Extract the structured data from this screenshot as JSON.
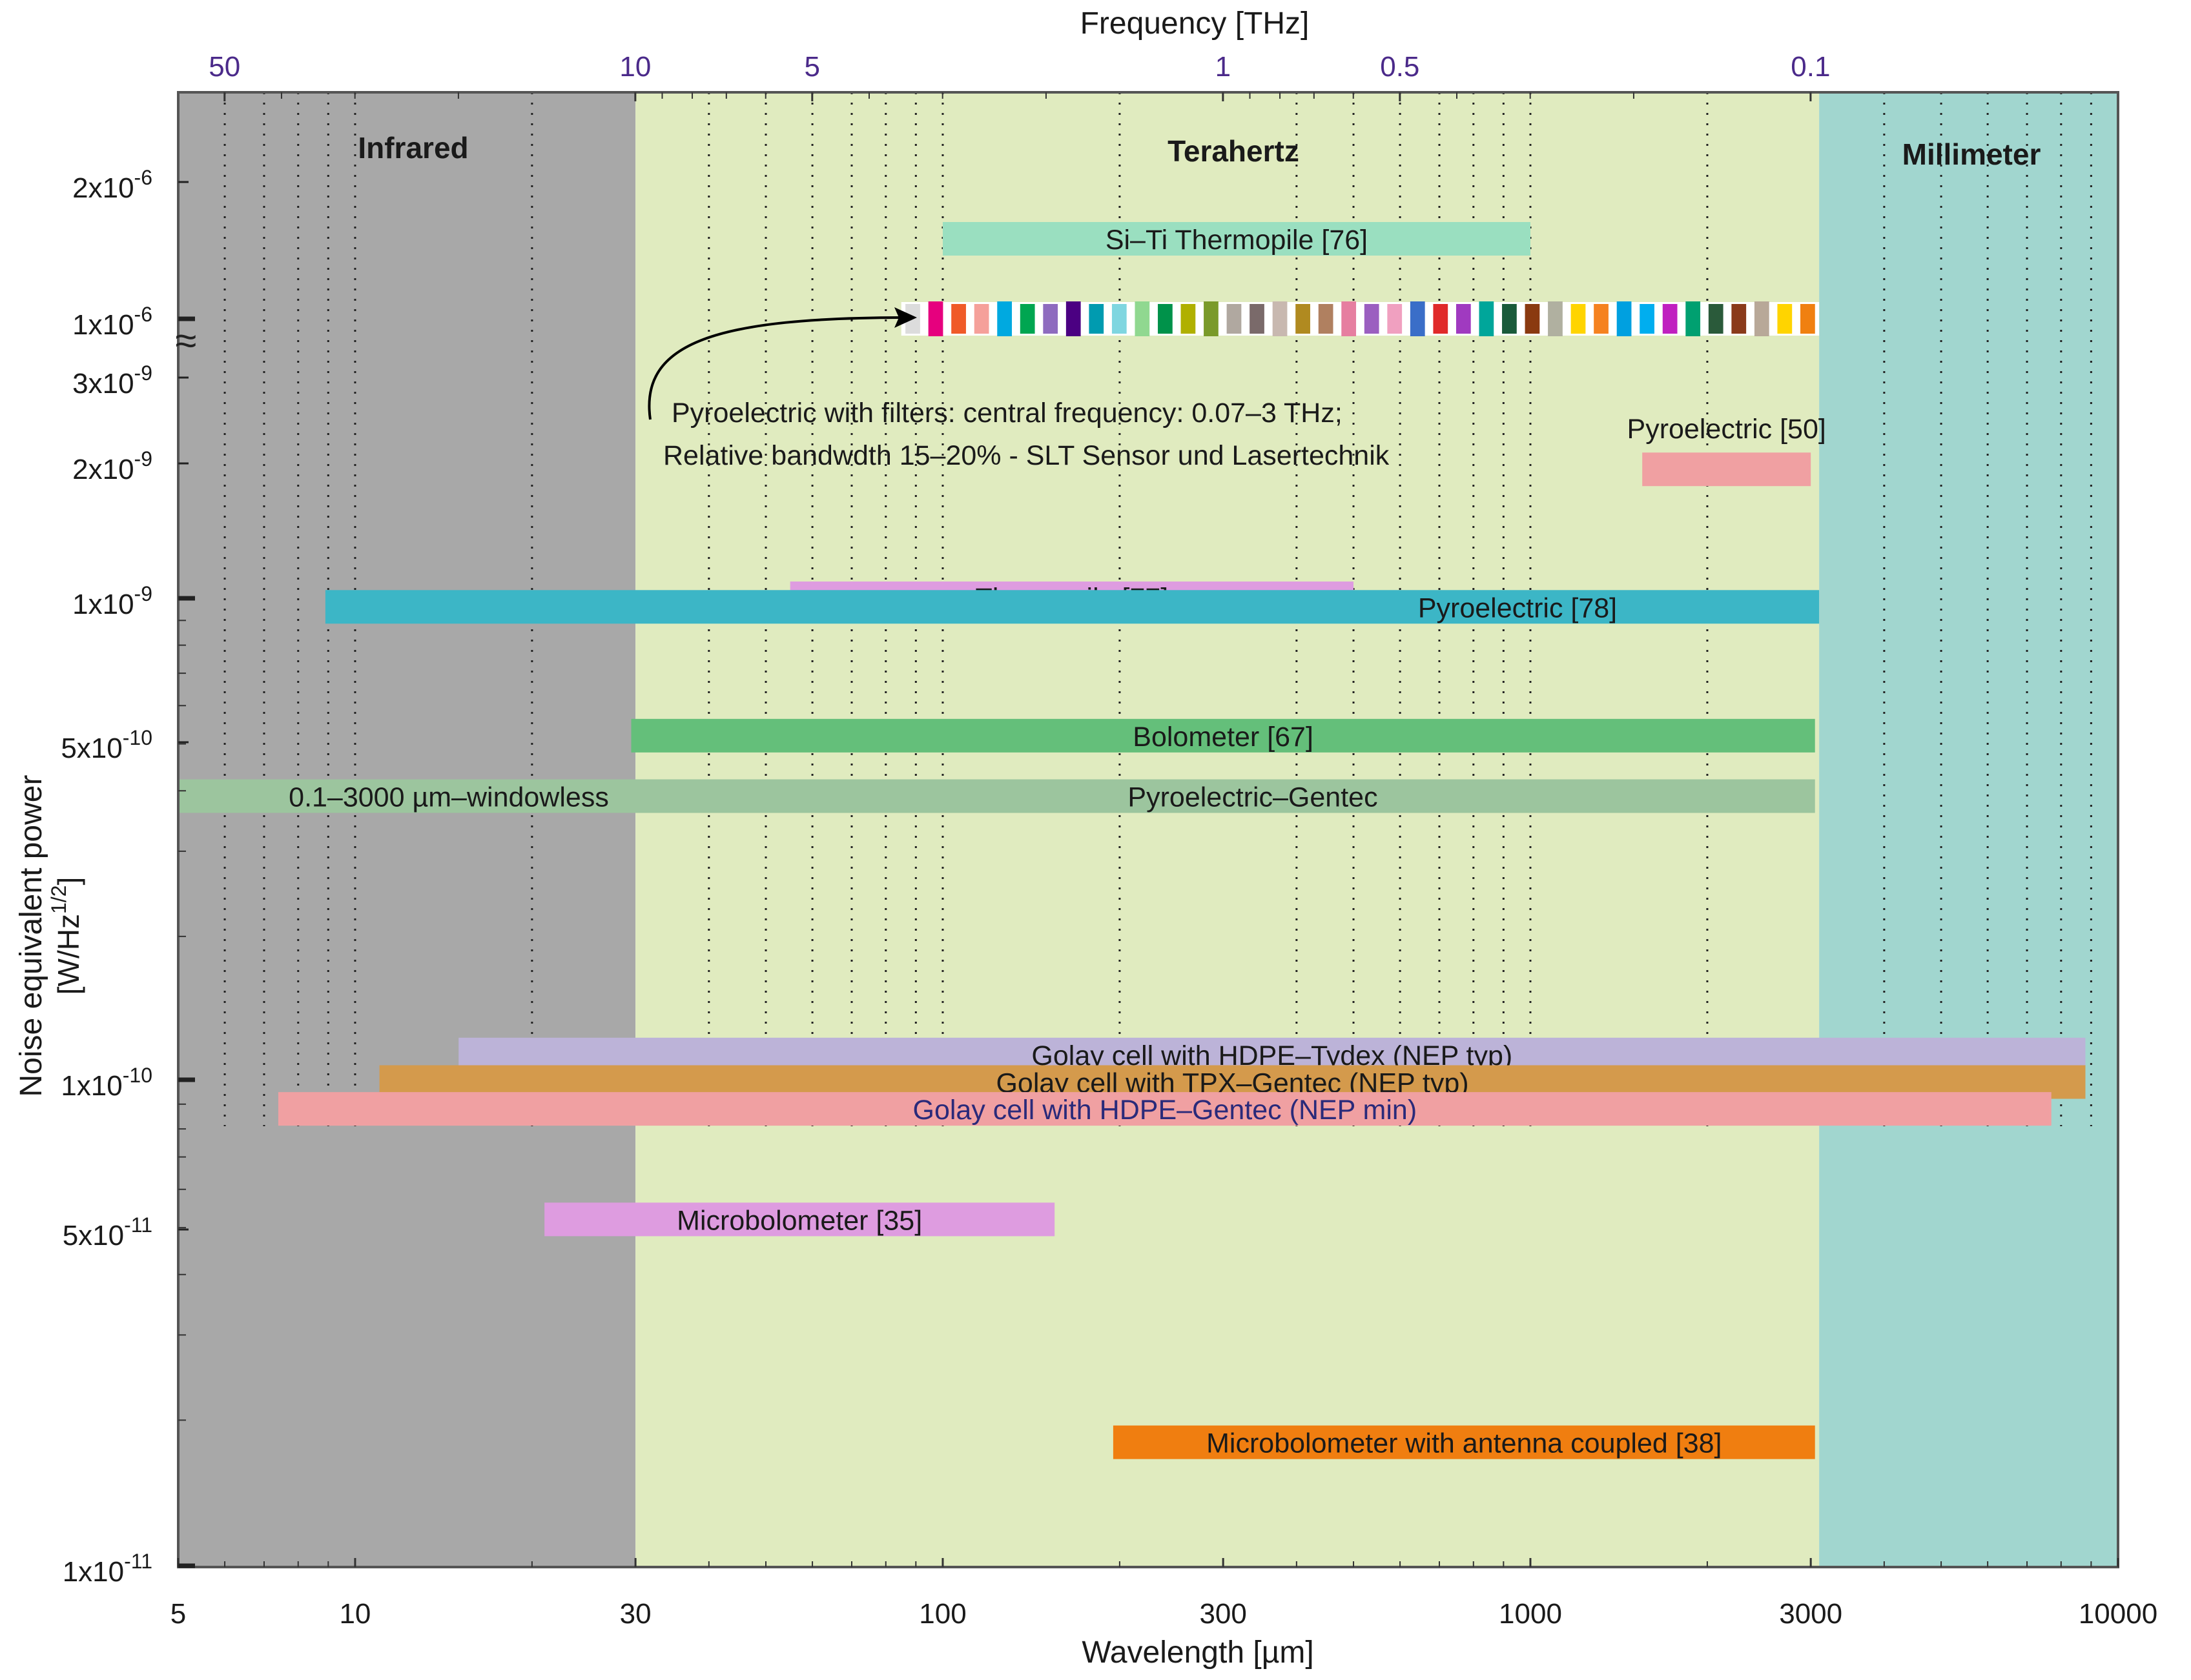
{
  "chart_data": {
    "type": "bar",
    "orientation": "horizontal-range",
    "top_axis": {
      "label": "Frequency [THz]",
      "ticks": [
        {
          "value": 50,
          "label": "50"
        },
        {
          "value": 10,
          "label": "10"
        },
        {
          "value": 5,
          "label": "5"
        },
        {
          "value": 1,
          "label": "1"
        },
        {
          "value": 0.5,
          "label": "0.5"
        },
        {
          "value": 0.1,
          "label": "0.1"
        }
      ],
      "tick_color": "#4b2a8a"
    },
    "x_axis": {
      "label": "Wavelength [µm]",
      "scale": "log",
      "range": [
        5,
        10000
      ],
      "ticks": [
        {
          "value": 5,
          "label": "5"
        },
        {
          "value": 10,
          "label": "10"
        },
        {
          "value": 30,
          "label": "30"
        },
        {
          "value": 100,
          "label": "100"
        },
        {
          "value": 300,
          "label": "300"
        },
        {
          "value": 1000,
          "label": "1000"
        },
        {
          "value": 3000,
          "label": "3000"
        },
        {
          "value": 10000,
          "label": "10000"
        }
      ],
      "gridlines": [
        6,
        7,
        8,
        9,
        10,
        20,
        40,
        50,
        60,
        70,
        80,
        90,
        100,
        200,
        400,
        500,
        600,
        700,
        800,
        900,
        1000,
        2000,
        4000,
        5000,
        6000,
        7000,
        8000,
        9000
      ]
    },
    "y_axis": {
      "label_main": "Noise equivalent power",
      "label_unit_prefix": "[W/Hz",
      "label_unit_sup": "1/2",
      "label_unit_suffix": "]",
      "scale": "log (broken)",
      "lower_segment": [
        1e-11,
        1e-09
      ],
      "upper_segment": [
        1e-09,
        1e-06
      ],
      "break": "≈",
      "ticks": [
        {
          "value": 2e-06,
          "base": "2x10",
          "exp": "-6"
        },
        {
          "value": 1e-06,
          "base": "1x10",
          "exp": "-6"
        },
        {
          "value": 3e-09,
          "base": "3x10",
          "exp": "-9"
        },
        {
          "value": 2e-09,
          "base": "2x10",
          "exp": "-9"
        },
        {
          "value": 1e-09,
          "base": "1x10",
          "exp": "-9"
        },
        {
          "value": 5e-10,
          "base": "5x10",
          "exp": "-10"
        },
        {
          "value": 1e-10,
          "base": "1x10",
          "exp": "-10"
        },
        {
          "value": 5e-11,
          "base": "5x10",
          "exp": "-11"
        },
        {
          "value": 1e-11,
          "base": "1x10",
          "exp": "-11"
        }
      ]
    },
    "regions": [
      {
        "name": "Infrared",
        "x": [
          5,
          30
        ],
        "color": "#a8a8a8"
      },
      {
        "name": "Terahertz",
        "x": [
          30,
          3100
        ],
        "color": "#e0ebbf"
      },
      {
        "name": "Millimeter",
        "x": [
          3100,
          10000
        ],
        "color": "#a1d6cf"
      }
    ],
    "series": [
      {
        "name": "Si–Ti Thermopile [76]",
        "x": [
          100,
          1000
        ],
        "nep": 1.5e-06,
        "color": "#9adfc0",
        "label_color": "#1a1a1a"
      },
      {
        "name": "Pyroelectric [50]",
        "x": [
          1550,
          3000
        ],
        "nep": 1.9e-09,
        "color": "#f0a0a2",
        "label_color": "#1a1a1a",
        "label_position": "above"
      },
      {
        "name": "Thermopile [77]",
        "x": [
          55,
          500
        ],
        "nep": 1e-09,
        "color": "#de9ce0",
        "label_color": "#1a1a1a"
      },
      {
        "name": "Pyroelectric [78]",
        "x": [
          8.9,
          3100
        ],
        "nep": 9.6e-10,
        "color": "#3cb6c6",
        "label_color": "#1a1a1a"
      },
      {
        "name": "Bolometer [67]",
        "x": [
          29.5,
          3050
        ],
        "nep": 5.2e-10,
        "color": "#64bf7a",
        "label_color": "#1a1a1a"
      },
      {
        "name": "Pyroelectric–Gentec",
        "x": [
          5,
          3050
        ],
        "nep": 3.9e-10,
        "color": "#9cc59e",
        "label_color": "#1a1a1a",
        "extra_label": "0.1–3000 µm–windowless"
      },
      {
        "name": "Golay cell with HDPE–Tydex (NEP typ)",
        "x": [
          15,
          8800
        ],
        "nep": 1.14e-10,
        "color": "#bcb3d8",
        "label_color": "#1a1a1a"
      },
      {
        "name": "Golay cell with TPX–Gentec (NEP typ)",
        "x": [
          11,
          8800
        ],
        "nep": 1e-10,
        "color": "#d49a4c",
        "label_color": "#1a1a1a"
      },
      {
        "name": "Golay cell with HDPE–Gentec (NEP min)",
        "x": [
          7.4,
          7700
        ],
        "nep": 8.8e-11,
        "color": "#f0a0a2",
        "label_color": "#2a2a7a"
      },
      {
        "name": "Microbolometer [35]",
        "x": [
          21,
          155
        ],
        "nep": 5.2e-11,
        "color": "#de9ce0",
        "label_color": "#1a1a1a"
      },
      {
        "name": "Microbolometer with antenna coupled [38]",
        "x": [
          195,
          3050
        ],
        "nep": 1.8e-11,
        "color": "#f07e10",
        "label_color": "#1a1a1a"
      }
    ],
    "filter_series": {
      "annotation_line1": "Pyroelectric with filters: central frequency: 0.07–3 THz;",
      "annotation_line2": "Relative bandwdth 15–20% - SLT Sensor und Lasertechnik",
      "nep": 1e-06,
      "x": [
        85,
        3100
      ],
      "colors": [
        "#dcdcdc",
        "#e6007e",
        "#f05a28",
        "#f5a09a",
        "#00a9e0",
        "#00a651",
        "#8e6bbf",
        "#4b0082",
        "#009bb0",
        "#7fd6e0",
        "#90d890",
        "#00924a",
        "#b0b000",
        "#7a9a2a",
        "#b0a8a0",
        "#7a6a6a",
        "#c8b8b0",
        "#b08a20",
        "#b08060",
        "#e67ea0",
        "#9b5fc0",
        "#f0a0c0",
        "#3a6ec8",
        "#e02a2a",
        "#a03ac0",
        "#00a69a",
        "#1a5a3a",
        "#8a3a10",
        "#b0b0a0",
        "#ffd400",
        "#f58220",
        "#00a0e0",
        "#00aeef",
        "#c020c0",
        "#00a070",
        "#2a5a3a",
        "#8a3a1a",
        "#b8a898",
        "#ffd400",
        "#f08010"
      ]
    },
    "regions_labels": [
      "Infrared",
      "Terahertz",
      "Millimeter"
    ]
  }
}
